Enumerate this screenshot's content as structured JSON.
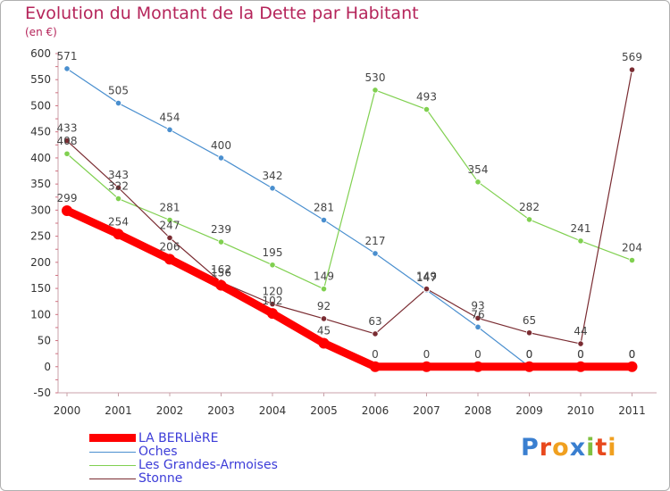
{
  "title": "Evolution du Montant de la Dette par Habitant",
  "subtitle": "(en €)",
  "logo": "Proxiti",
  "chart_data": {
    "type": "line",
    "x": [
      "2000",
      "2001",
      "2002",
      "2003",
      "2004",
      "2005",
      "2006",
      "2007",
      "2008",
      "2009",
      "2010",
      "2011"
    ],
    "yticks": [
      -50,
      0,
      50,
      100,
      150,
      200,
      250,
      300,
      350,
      400,
      450,
      500,
      550,
      600
    ],
    "ylim": [
      -50,
      600
    ],
    "grid": false,
    "legend": "bottom-left",
    "series": [
      {
        "name": "LA BERLIèRE",
        "color": "#ff0000",
        "values": [
          299,
          254,
          206,
          156,
          102,
          45,
          0,
          0,
          0,
          0,
          0,
          0
        ]
      },
      {
        "name": "Oches",
        "color": "#4a8fcf",
        "values": [
          571,
          505,
          454,
          400,
          342,
          281,
          217,
          147,
          76,
          0,
          0,
          0
        ]
      },
      {
        "name": "Les Grandes-Armoises",
        "color": "#80d050",
        "values": [
          408,
          322,
          281,
          239,
          195,
          149,
          530,
          493,
          354,
          282,
          241,
          204
        ]
      },
      {
        "name": "Stonne",
        "color": "#7a2c32",
        "values": [
          433,
          343,
          247,
          162,
          120,
          92,
          63,
          149,
          93,
          65,
          44,
          569
        ]
      }
    ]
  }
}
